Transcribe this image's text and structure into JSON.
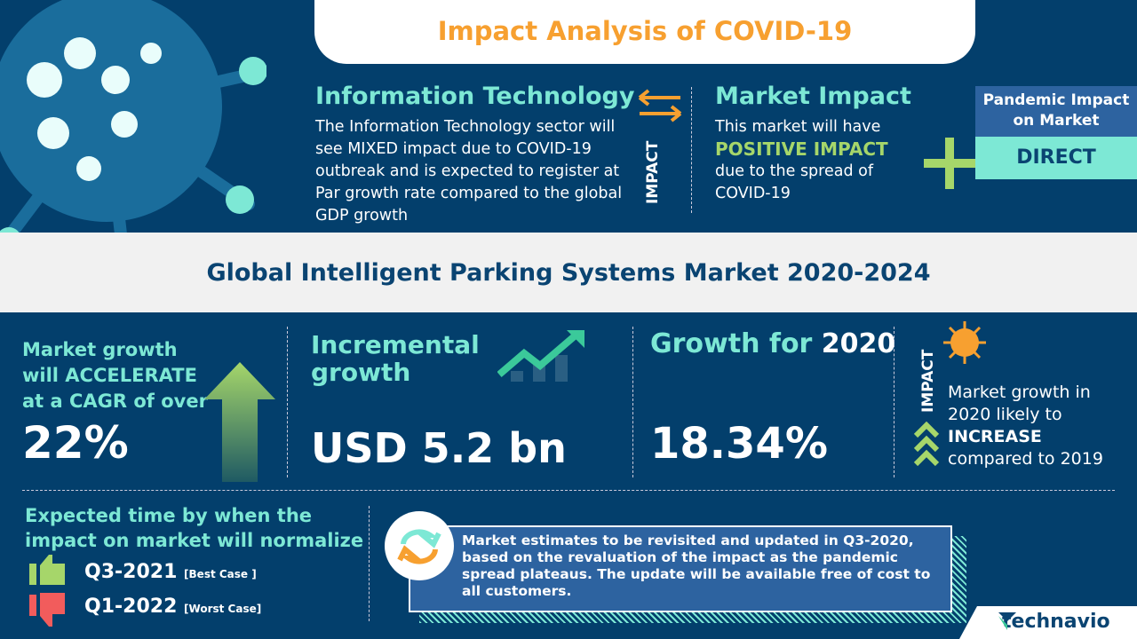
{
  "header": {
    "title": "Impact Analysis of COVID-19"
  },
  "sector": {
    "heading": "Information Technology",
    "text": "The Information Technology sector will see MIXED  impact due to COVID-19 outbreak and is expected to register at Par growth rate compared to the global GDP growth"
  },
  "impact_label": "IMPACT",
  "market_impact": {
    "heading": "Market Impact",
    "line1": "This market will have",
    "highlight": "POSITIVE IMPACT",
    "line2": "due to the spread of COVID-19"
  },
  "pandemic": {
    "label": "Pandemic Impact on Market",
    "value": "DIRECT"
  },
  "market_title": "Global Intelligent Parking Systems Market 2020-2024",
  "cagr": {
    "text": "Market growth will ACCELERATE at a CAGR of over",
    "value": "22%"
  },
  "incremental": {
    "label": "Incremental growth",
    "value": "USD 5.2 bn"
  },
  "growth2020": {
    "label": "Growth for",
    "year": "2020",
    "value": "18.34%"
  },
  "impact2020": {
    "label": "IMPACT",
    "line1": "Market growth in 2020 likely to",
    "highlight": "INCREASE",
    "line2": "compared to 2019"
  },
  "normalize": {
    "heading": "Expected time by when the impact on market will normalize",
    "best": {
      "value": "Q3-2021",
      "tag": "[Best Case ]"
    },
    "worst": {
      "value": "Q1-2022",
      "tag": "[Worst Case]"
    }
  },
  "note": "Market estimates to be revisited and updated in Q3-2020, based on the revaluation of the impact as the pandemic spread plateaus. The update will be available free of cost to all customers.",
  "brand": "technavio",
  "colors": {
    "background": "#033f6c",
    "teal": "#7de8d5",
    "orange": "#f7a030",
    "green": "#a6d66a",
    "red": "#f25c5c"
  }
}
